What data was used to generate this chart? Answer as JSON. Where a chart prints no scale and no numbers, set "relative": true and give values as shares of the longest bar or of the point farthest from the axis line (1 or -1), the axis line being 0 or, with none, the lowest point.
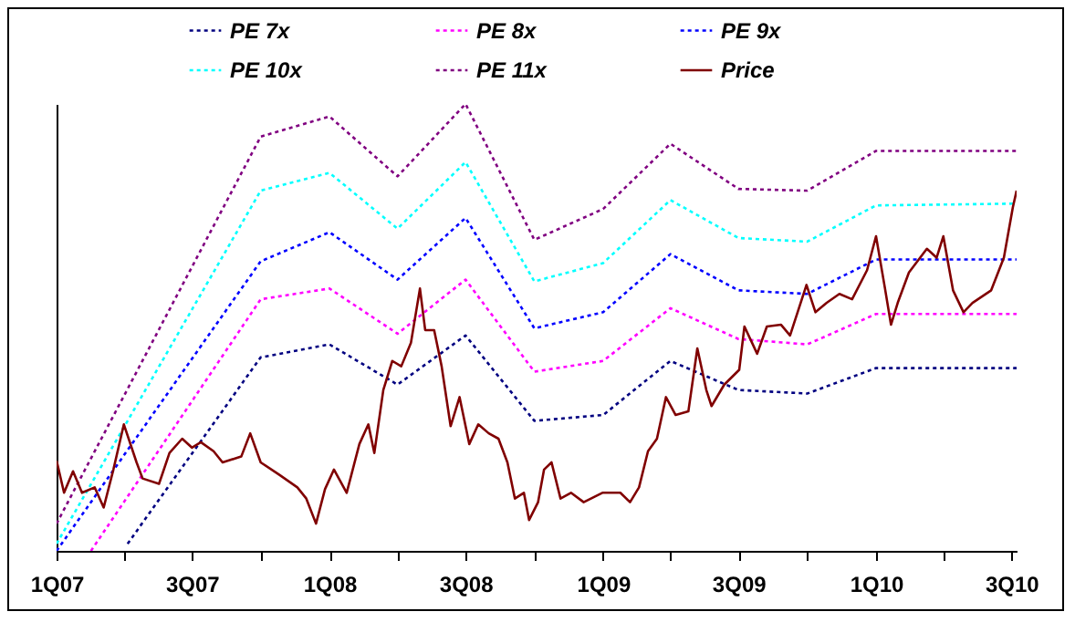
{
  "chart_data": {
    "type": "line",
    "relative": true,
    "legend": "top",
    "xlim": [
      "2007-01-01",
      "2010-07-08"
    ],
    "xticks": [
      {
        "value": "2007-01-01",
        "label": "1Q07"
      },
      {
        "value": "2007-04-01",
        "label": null
      },
      {
        "value": "2007-07-01",
        "label": "3Q07"
      },
      {
        "value": "2007-10-01",
        "label": null
      },
      {
        "value": "2008-01-01",
        "label": "1Q08"
      },
      {
        "value": "2008-04-01",
        "label": null
      },
      {
        "value": "2008-07-01",
        "label": "3Q08"
      },
      {
        "value": "2008-10-01",
        "label": null
      },
      {
        "value": "2009-01-01",
        "label": "1Q09"
      },
      {
        "value": "2009-04-01",
        "label": null
      },
      {
        "value": "2009-07-01",
        "label": "3Q09"
      },
      {
        "value": "2009-10-01",
        "label": null
      },
      {
        "value": "2010-01-01",
        "label": "1Q10"
      },
      {
        "value": "2010-04-01",
        "label": null
      },
      {
        "value": "2010-07-01",
        "label": "3Q10"
      }
    ],
    "series": [
      {
        "name": "PE 7x",
        "color": "#000080",
        "line_style": "dotted",
        "x": [
          "2007-04-06",
          "2007-10-01",
          "2008-01-01",
          "2008-04-01",
          "2008-07-01",
          "2008-10-01",
          "2009-01-01",
          "2009-04-01",
          "2009-07-01",
          "2009-10-01",
          "2010-01-01",
          "2010-07-08"
        ],
        "values": [
          0.016,
          0.433,
          0.462,
          0.372,
          0.482,
          0.291,
          0.304,
          0.425,
          0.36,
          0.352,
          0.409,
          0.409
        ]
      },
      {
        "name": "PE 8x",
        "color": "#ff00ff",
        "line_style": "dotted",
        "x": [
          "2007-02-16",
          "2007-10-01",
          "2008-01-01",
          "2008-04-01",
          "2008-07-01",
          "2008-10-01",
          "2009-01-01",
          "2009-04-01",
          "2009-07-01",
          "2009-10-01",
          "2010-01-01",
          "2010-07-08"
        ],
        "values": [
          0.0,
          0.563,
          0.587,
          0.486,
          0.607,
          0.401,
          0.425,
          0.543,
          0.474,
          0.462,
          0.53,
          0.53
        ]
      },
      {
        "name": "PE 9x",
        "color": "#0000ff",
        "line_style": "dotted",
        "x": [
          "2007-01-01",
          "2007-10-01",
          "2008-01-01",
          "2008-04-01",
          "2008-07-01",
          "2008-10-01",
          "2009-01-01",
          "2009-04-01",
          "2009-07-01",
          "2009-10-01",
          "2010-01-01",
          "2010-07-08"
        ],
        "values": [
          0.0,
          0.648,
          0.713,
          0.607,
          0.745,
          0.498,
          0.534,
          0.664,
          0.583,
          0.575,
          0.652,
          0.652
        ]
      },
      {
        "name": "PE 10x",
        "color": "#00ffff",
        "line_style": "dotted",
        "x": [
          "2007-01-01",
          "2007-10-01",
          "2008-01-01",
          "2008-04-01",
          "2008-07-01",
          "2008-10-01",
          "2009-01-01",
          "2009-04-01",
          "2009-07-01",
          "2009-10-01",
          "2010-01-01",
          "2010-07-08"
        ],
        "values": [
          0.016,
          0.806,
          0.846,
          0.721,
          0.87,
          0.603,
          0.644,
          0.785,
          0.7,
          0.692,
          0.773,
          0.777
        ]
      },
      {
        "name": "PE 11x",
        "color": "#800080",
        "line_style": "dotted",
        "x": [
          "2007-01-01",
          "2007-10-01",
          "2008-01-01",
          "2008-04-01",
          "2008-07-01",
          "2008-10-01",
          "2009-01-01",
          "2009-04-01",
          "2009-07-01",
          "2009-10-01",
          "2010-01-01",
          "2010-07-08"
        ],
        "values": [
          0.061,
          0.927,
          0.972,
          0.838,
          1.0,
          0.696,
          0.765,
          0.911,
          0.81,
          0.806,
          0.895,
          0.895
        ]
      },
      {
        "name": "Price",
        "color": "#800000",
        "line_style": "solid",
        "x": [
          "2007-01-01",
          "2007-01-11",
          "2007-01-23",
          "2007-02-04",
          "2007-02-21",
          "2007-03-05",
          "2007-03-18",
          "2007-04-01",
          "2007-04-18",
          "2007-04-26",
          "2007-05-18",
          "2007-06-01",
          "2007-06-18",
          "2007-07-01",
          "2007-07-13",
          "2007-07-30",
          "2007-08-11",
          "2007-09-05",
          "2007-09-17",
          "2007-10-01",
          "2007-10-26",
          "2007-11-19",
          "2007-12-01",
          "2007-12-14",
          "2007-12-26",
          "2008-01-07",
          "2008-01-24",
          "2008-02-10",
          "2008-02-22",
          "2008-03-01",
          "2008-03-13",
          "2008-03-25",
          "2008-04-06",
          "2008-04-19",
          "2008-05-01",
          "2008-05-08",
          "2008-05-20",
          "2008-05-30",
          "2008-06-11",
          "2008-06-23",
          "2008-07-06",
          "2008-07-18",
          "2008-08-01",
          "2008-08-14",
          "2008-08-26",
          "2008-09-05",
          "2008-09-17",
          "2008-09-24",
          "2008-10-06",
          "2008-10-14",
          "2008-10-24",
          "2008-11-05",
          "2008-11-19",
          "2008-12-06",
          "2008-12-31",
          "2009-01-24",
          "2009-02-06",
          "2009-02-18",
          "2009-03-02",
          "2009-03-14",
          "2009-03-26",
          "2009-04-08",
          "2009-04-25",
          "2009-05-07",
          "2009-05-19",
          "2009-05-26",
          "2009-06-12",
          "2009-07-02",
          "2009-07-09",
          "2009-07-26",
          "2009-08-08",
          "2009-08-27",
          "2009-09-08",
          "2009-09-30",
          "2009-10-12",
          "2009-10-27",
          "2009-11-13",
          "2009-11-30",
          "2009-12-20",
          "2010-01-01",
          "2010-01-13",
          "2010-01-21",
          "2010-01-30",
          "2010-02-14",
          "2010-03-10",
          "2010-03-23",
          "2010-04-01",
          "2010-04-14",
          "2010-04-28",
          "2010-05-10",
          "2010-06-04",
          "2010-06-21",
          "2010-07-03",
          "2010-07-08"
        ],
        "values": [
          0.202,
          0.13,
          0.178,
          0.13,
          0.142,
          0.097,
          0.182,
          0.283,
          0.198,
          0.162,
          0.15,
          0.219,
          0.251,
          0.231,
          0.243,
          0.223,
          0.198,
          0.211,
          0.263,
          0.198,
          0.17,
          0.142,
          0.117,
          0.061,
          0.138,
          0.182,
          0.13,
          0.239,
          0.283,
          0.219,
          0.36,
          0.425,
          0.413,
          0.466,
          0.587,
          0.494,
          0.494,
          0.413,
          0.279,
          0.344,
          0.239,
          0.283,
          0.263,
          0.251,
          0.198,
          0.117,
          0.13,
          0.069,
          0.109,
          0.182,
          0.198,
          0.117,
          0.13,
          0.109,
          0.13,
          0.13,
          0.109,
          0.142,
          0.223,
          0.251,
          0.344,
          0.304,
          0.312,
          0.453,
          0.36,
          0.324,
          0.372,
          0.405,
          0.502,
          0.441,
          0.502,
          0.506,
          0.482,
          0.595,
          0.534,
          0.555,
          0.575,
          0.563,
          0.628,
          0.704,
          0.587,
          0.506,
          0.555,
          0.623,
          0.676,
          0.656,
          0.704,
          0.583,
          0.534,
          0.555,
          0.583,
          0.656,
          0.769,
          0.806
        ]
      }
    ]
  }
}
